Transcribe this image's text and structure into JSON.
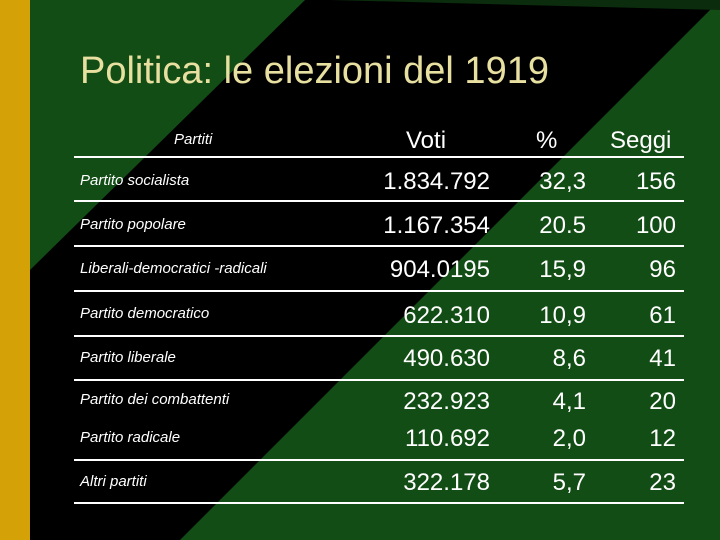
{
  "slide": {
    "title": "Politica: le elezioni del 1919",
    "table": {
      "headers": {
        "party": "Partiti",
        "votes": "Voti",
        "percent": "%",
        "seats": "Seggi"
      },
      "rows": [
        {
          "party": "Partito socialista",
          "votes": "1.834.792",
          "percent": "32,3",
          "seats": "156"
        },
        {
          "party": "Partito popolare",
          "votes": "1.167.354",
          "percent": "20.5",
          "seats": "100"
        },
        {
          "party": "Liberali-democratici -radicali",
          "votes": "904.0195",
          "percent": "15,9",
          "seats": "96"
        },
        {
          "party": "Partito democratico",
          "votes": "622.310",
          "percent": "10,9",
          "seats": "61"
        },
        {
          "party": "Partito liberale",
          "votes": "490.630",
          "percent": "8,6",
          "seats": "41"
        },
        {
          "party": "Partito dei combattenti",
          "votes": "232.923",
          "percent": "4,1",
          "seats": "20"
        },
        {
          "party": "Partito radicale",
          "votes": "110.692",
          "percent": "2,0",
          "seats": "12"
        },
        {
          "party": "Altri partiti",
          "votes": "322.178",
          "percent": "5,7",
          "seats": "23"
        }
      ]
    },
    "colors": {
      "background": "#000000",
      "green": "#134d16",
      "gold": "#d4a106",
      "title": "#e8e0a0",
      "text": "#ffffff"
    }
  }
}
